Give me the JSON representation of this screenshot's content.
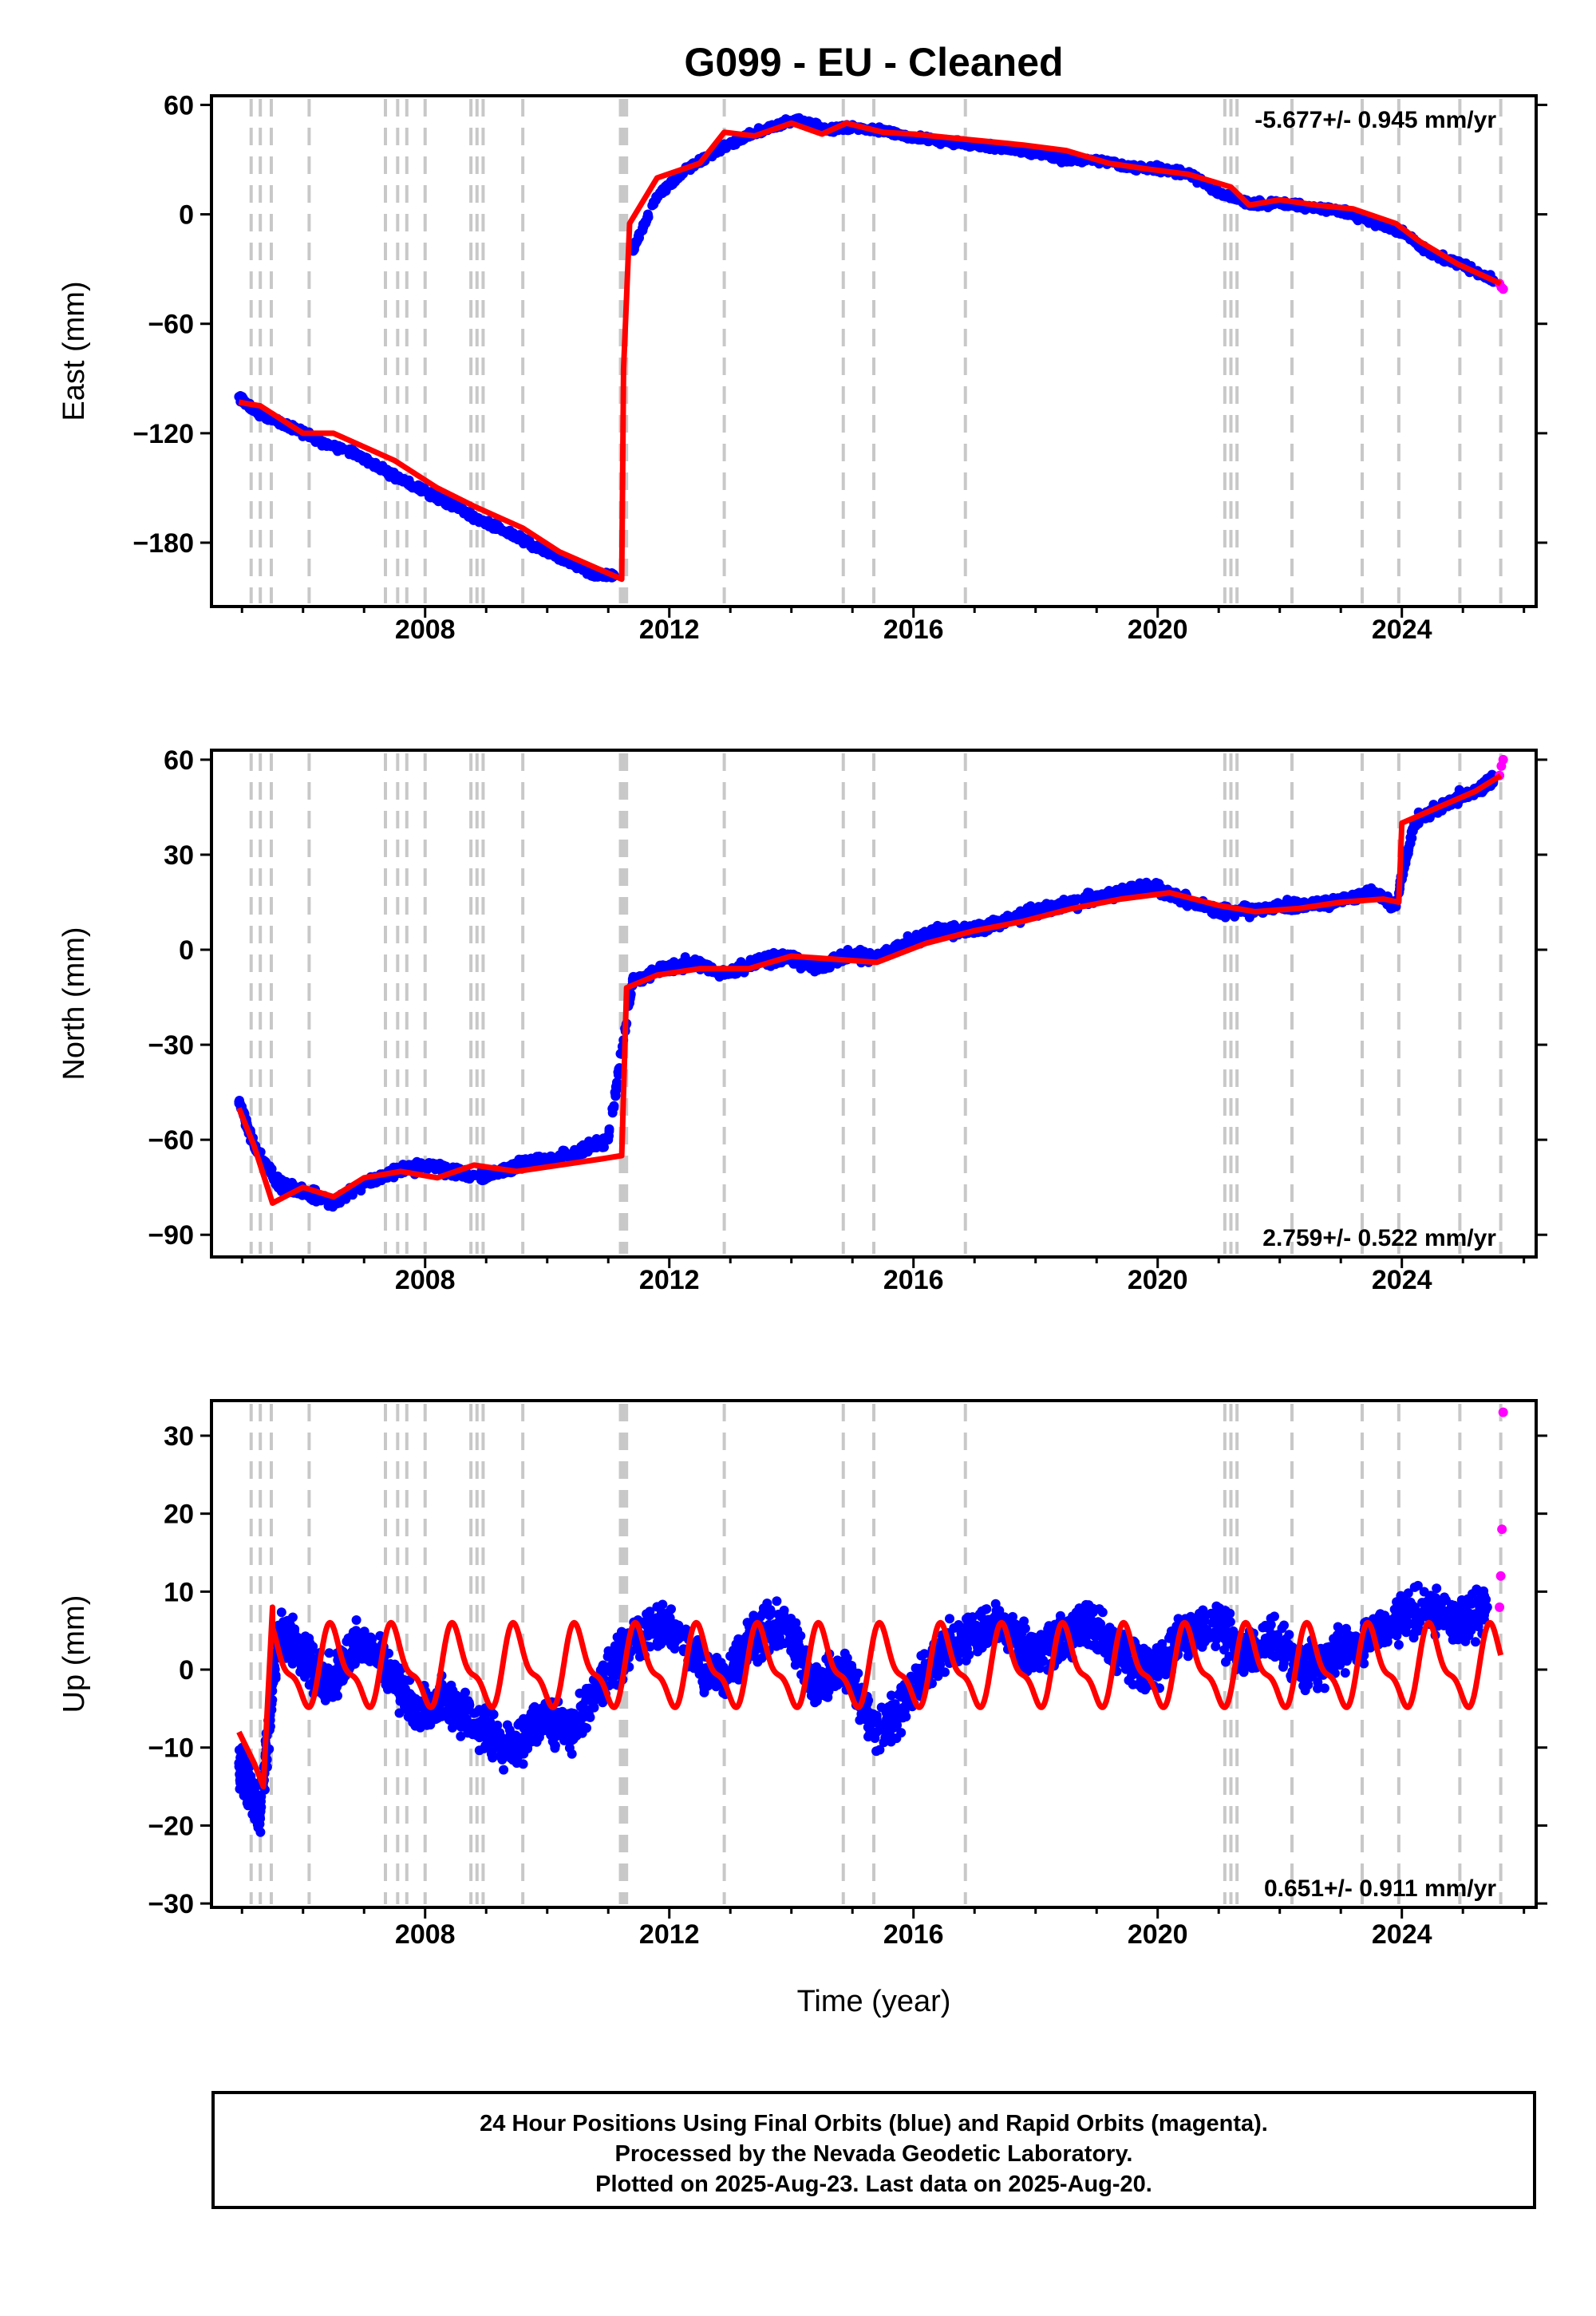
{
  "title": "G099  - EU - Cleaned",
  "colors": {
    "final": "#0000ff",
    "rapid": "#ff00ff",
    "model": "#ff0000",
    "event_line": "#c8c8c8",
    "axis": "#000000"
  },
  "x_axis": {
    "label": "Time (year)",
    "ticks": [
      2008,
      2012,
      2016,
      2020,
      2024
    ],
    "range": [
      2004.5,
      2026.2
    ]
  },
  "event_lines": [
    2005.15,
    2005.3,
    2005.48,
    2006.1,
    2007.35,
    2007.55,
    2007.7,
    2008.0,
    2008.75,
    2008.85,
    2008.95,
    2009.6,
    2011.2,
    2011.25,
    2011.3,
    2012.9,
    2014.85,
    2015.35,
    2016.85,
    2021.1,
    2021.2,
    2021.3,
    2022.2,
    2023.35,
    2023.95,
    2024.95,
    2025.62
  ],
  "chart_data": [
    {
      "type": "scatter",
      "panel": "east",
      "ylabel": "East (mm)",
      "yticks": [
        60,
        0,
        -60,
        -120,
        -180
      ],
      "ylim": [
        -215,
        65
      ],
      "rate_label": "-5.677+/- 0.945 mm/yr",
      "rate_position": "top-right",
      "model": {
        "x": [
          2004.95,
          2005.3,
          2006.0,
          2006.5,
          2007.5,
          2008.2,
          2008.8,
          2009.6,
          2010.2,
          2011.22,
          2011.25,
          2011.35,
          2011.8,
          2012.5,
          2012.9,
          2013.4,
          2014.0,
          2014.5,
          2014.9,
          2015.5,
          2016.0,
          2016.6,
          2017.2,
          2017.8,
          2018.5,
          2019.2,
          2019.8,
          2020.5,
          2021.2,
          2021.5,
          2022.0,
          2022.6,
          2023.2,
          2023.9,
          2024.3,
          2024.9,
          2025.62
        ],
        "y": [
          -103,
          -105,
          -120,
          -120,
          -135,
          -150,
          -160,
          -172,
          -185,
          -200,
          -85,
          -5,
          20,
          28,
          45,
          43,
          50,
          44,
          50,
          45,
          44,
          42,
          40,
          38,
          35,
          28,
          25,
          22,
          15,
          5,
          8,
          5,
          3,
          -5,
          -15,
          -27,
          -38
        ]
      },
      "series": [
        {
          "name": "Final Orbits",
          "color": "#0000ff",
          "x": [
            2004.95,
            2005.2,
            2005.5,
            2005.9,
            2006.3,
            2006.8,
            2007.2,
            2007.6,
            2008.0,
            2008.5,
            2008.9,
            2009.4,
            2009.8,
            2010.3,
            2010.8,
            2011.1,
            2011.4,
            2011.8,
            2012.3,
            2012.8,
            2013.2,
            2013.7,
            2014.1,
            2014.6,
            2015.0,
            2015.5,
            2016.0,
            2016.5,
            2017.0,
            2017.5,
            2018.0,
            2018.5,
            2019.0,
            2019.5,
            2020.0,
            2020.5,
            2021.0,
            2021.5,
            2022.0,
            2022.5,
            2023.0,
            2023.5,
            2024.0,
            2024.5,
            2025.0,
            2025.5
          ],
          "y": [
            -100,
            -108,
            -112,
            -118,
            -125,
            -130,
            -138,
            -145,
            -152,
            -160,
            -168,
            -175,
            -182,
            -190,
            -198,
            -198,
            -20,
            10,
            25,
            35,
            42,
            48,
            52,
            46,
            48,
            46,
            42,
            40,
            38,
            36,
            34,
            30,
            30,
            26,
            25,
            22,
            12,
            6,
            6,
            4,
            2,
            -4,
            -10,
            -22,
            -28,
            -36
          ]
        },
        {
          "name": "Rapid Orbits",
          "color": "#ff00ff",
          "x": [
            2025.6,
            2025.63,
            2025.66
          ],
          "y": [
            -38,
            -40,
            -41
          ]
        }
      ]
    },
    {
      "type": "scatter",
      "panel": "north",
      "ylabel": "North (mm)",
      "yticks": [
        60,
        30,
        0,
        -30,
        -60,
        -90
      ],
      "ylim": [
        -97,
        63
      ],
      "rate_label": "2.759+/- 0.522 mm/yr",
      "rate_position": "bottom-right",
      "model": {
        "x": [
          2004.95,
          2005.2,
          2005.5,
          2006.0,
          2006.5,
          2007.0,
          2007.6,
          2008.2,
          2008.8,
          2009.5,
          2010.2,
          2010.9,
          2011.22,
          2011.3,
          2011.8,
          2012.5,
          2013.3,
          2014.0,
          2014.7,
          2015.4,
          2016.2,
          2017.0,
          2017.8,
          2018.6,
          2019.4,
          2020.2,
          2021.0,
          2021.6,
          2022.3,
          2023.0,
          2023.7,
          2023.95,
          2024.0,
          2024.6,
          2025.2,
          2025.62
        ],
        "y": [
          -50,
          -62,
          -80,
          -75,
          -78,
          -72,
          -70,
          -72,
          -68,
          -70,
          -68,
          -66,
          -65,
          -12,
          -8,
          -6,
          -6,
          -2,
          -3,
          -4,
          2,
          6,
          9,
          13,
          16,
          18,
          14,
          12,
          13,
          15,
          16,
          15,
          40,
          45,
          50,
          55
        ]
      },
      "series": [
        {
          "name": "Final Orbits",
          "color": "#0000ff",
          "x": [
            2004.95,
            2005.2,
            2005.6,
            2006.0,
            2006.5,
            2007.0,
            2007.5,
            2008.0,
            2008.5,
            2009.0,
            2009.5,
            2010.0,
            2010.5,
            2011.0,
            2011.4,
            2011.9,
            2012.4,
            2012.9,
            2013.4,
            2013.9,
            2014.4,
            2014.9,
            2015.4,
            2015.9,
            2016.4,
            2016.9,
            2017.4,
            2017.9,
            2018.4,
            2018.9,
            2019.4,
            2019.9,
            2020.4,
            2021.0,
            2021.5,
            2022.0,
            2022.5,
            2023.0,
            2023.5,
            2023.9,
            2024.2,
            2024.7,
            2025.2,
            2025.5
          ],
          "y": [
            -48,
            -62,
            -74,
            -76,
            -80,
            -74,
            -70,
            -68,
            -70,
            -72,
            -68,
            -66,
            -64,
            -60,
            -10,
            -6,
            -4,
            -8,
            -4,
            -2,
            -6,
            -2,
            -2,
            2,
            6,
            6,
            8,
            12,
            14,
            16,
            18,
            20,
            16,
            12,
            12,
            14,
            14,
            16,
            18,
            14,
            40,
            46,
            50,
            54
          ]
        },
        {
          "name": "Rapid Orbits",
          "color": "#ff00ff",
          "x": [
            2025.6,
            2025.63,
            2025.66
          ],
          "y": [
            55,
            58,
            60
          ]
        }
      ]
    },
    {
      "type": "scatter",
      "panel": "up",
      "ylabel": "Up (mm)",
      "yticks": [
        30,
        20,
        10,
        0,
        -10,
        -20,
        -30
      ],
      "ylim": [
        -30.5,
        34.5
      ],
      "rate_label": "0.651+/- 0.911 mm/yr",
      "rate_position": "bottom-right",
      "model": {
        "mean": 0.2,
        "amplitude": 4.5,
        "start": 2004.95,
        "end": 2025.62,
        "initial": [
          [
            2004.95,
            -8
          ],
          [
            2005.2,
            -12
          ],
          [
            2005.35,
            -15
          ],
          [
            2005.5,
            8
          ]
        ]
      },
      "series": [
        {
          "name": "Final Orbits",
          "color": "#0000ff",
          "x": [
            2004.95,
            2005.1,
            2005.3,
            2005.6,
            2006.0,
            2006.4,
            2006.9,
            2007.4,
            2007.9,
            2008.4,
            2008.9,
            2009.4,
            2009.9,
            2010.4,
            2010.9,
            2011.4,
            2011.9,
            2012.4,
            2012.9,
            2013.4,
            2013.9,
            2014.4,
            2014.9,
            2015.4,
            2015.9,
            2016.4,
            2016.9,
            2017.4,
            2017.9,
            2018.4,
            2018.9,
            2019.4,
            2019.9,
            2020.4,
            2020.9,
            2021.4,
            2021.9,
            2022.4,
            2022.9,
            2023.4,
            2023.9,
            2024.4,
            2024.9,
            2025.4
          ],
          "y": [
            -12,
            -15,
            -18,
            5,
            2,
            -2,
            4,
            0,
            -6,
            -4,
            -8,
            -10,
            -6,
            -8,
            -2,
            4,
            6,
            2,
            -1,
            4,
            6,
            -2,
            0,
            -8,
            -4,
            2,
            4,
            6,
            2,
            4,
            6,
            2,
            0,
            4,
            6,
            2,
            4,
            0,
            2,
            4,
            6,
            8,
            6,
            8
          ]
        },
        {
          "name": "Rapid Orbits",
          "color": "#ff00ff",
          "x": [
            2025.6,
            2025.62,
            2025.64,
            2025.66
          ],
          "y": [
            8,
            12,
            18,
            33
          ]
        }
      ]
    }
  ],
  "footer": {
    "line1": "24 Hour Positions Using Final Orbits (blue) and Rapid Orbits (magenta).",
    "line2": "Processed by the Nevada Geodetic Laboratory.",
    "line3": "Plotted on 2025-Aug-23. Last data on 2025-Aug-20."
  }
}
